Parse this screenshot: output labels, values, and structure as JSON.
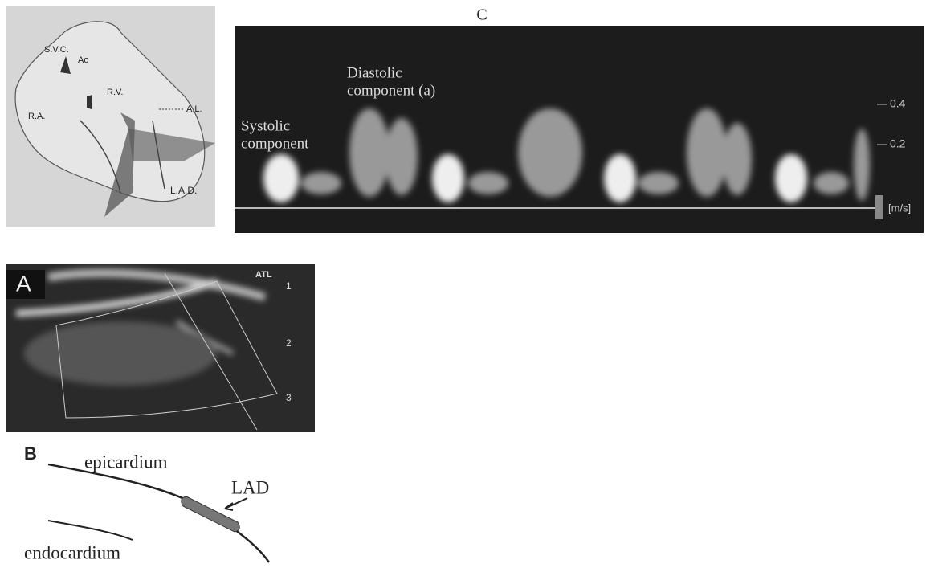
{
  "heart_diagram": {
    "labels": [
      "S.V.C.",
      "Ao",
      "R.V.",
      "R.A.",
      "A.L.",
      "L.A.D."
    ]
  },
  "panel_c": {
    "label": "C",
    "diastolic": [
      "Diastolic",
      "component (a)"
    ],
    "systolic": [
      "Systolic",
      "component"
    ],
    "scale": [
      "0.4",
      "0.2"
    ],
    "unit": "[m/s]"
  },
  "panel_a": {
    "label": "A",
    "brand": "ATL",
    "depth": [
      "1",
      "2",
      "3"
    ]
  },
  "panel_b": {
    "label": "B",
    "epicardium": "epicardium",
    "lad": "LAD",
    "endocardium": "endocardium"
  }
}
